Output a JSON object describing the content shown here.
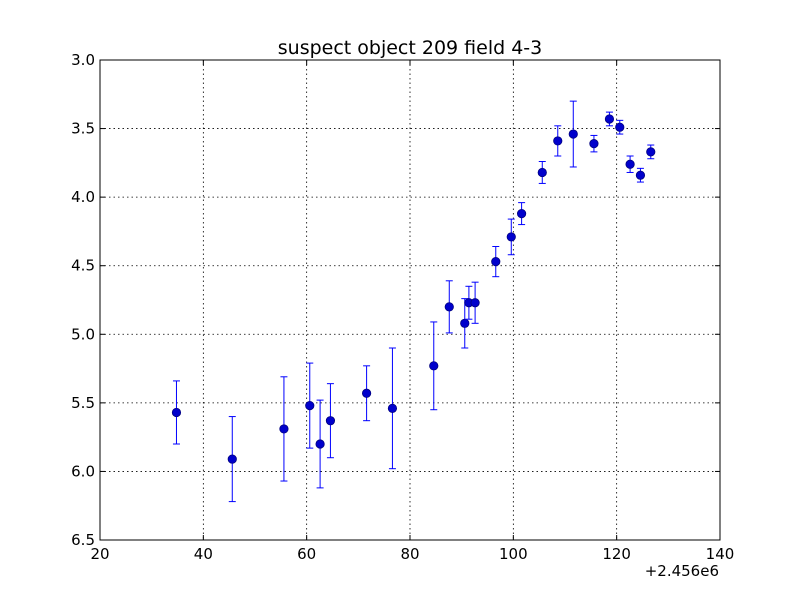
{
  "chart_data": {
    "type": "scatter",
    "title": "suspect object 209 field 4-3",
    "xlabel": "",
    "ylabel": "",
    "x_offset_label": "+2.456e6",
    "xlim": [
      20,
      140
    ],
    "ylim": [
      3.0,
      6.5
    ],
    "y_inverted": true,
    "grid": true,
    "x_ticks": [
      20,
      40,
      60,
      80,
      100,
      120,
      140
    ],
    "x_tick_labels": [
      "20",
      "40",
      "60",
      "80",
      "100",
      "120",
      "140"
    ],
    "y_ticks": [
      3.0,
      3.5,
      4.0,
      4.5,
      5.0,
      5.5,
      6.0,
      6.5
    ],
    "y_tick_labels": [
      "3.0",
      "3.5",
      "4.0",
      "4.5",
      "5.0",
      "5.5",
      "6.0",
      "6.5"
    ],
    "marker_color": "#0000cc",
    "errorbar_color": "#0000ff",
    "points": [
      {
        "x": 34.8,
        "y": 5.57,
        "err": 0.23
      },
      {
        "x": 45.6,
        "y": 5.91,
        "err": 0.31
      },
      {
        "x": 55.6,
        "y": 5.69,
        "err": 0.38
      },
      {
        "x": 60.6,
        "y": 5.52,
        "err": 0.31
      },
      {
        "x": 62.6,
        "y": 5.8,
        "err": 0.32
      },
      {
        "x": 64.6,
        "y": 5.63,
        "err": 0.27
      },
      {
        "x": 71.6,
        "y": 5.43,
        "err": 0.2
      },
      {
        "x": 76.6,
        "y": 5.54,
        "err": 0.44
      },
      {
        "x": 84.6,
        "y": 5.23,
        "err": 0.32
      },
      {
        "x": 87.6,
        "y": 4.8,
        "err": 0.19
      },
      {
        "x": 90.6,
        "y": 4.92,
        "err": 0.18
      },
      {
        "x": 91.4,
        "y": 4.77,
        "err": 0.12
      },
      {
        "x": 92.6,
        "y": 4.77,
        "err": 0.15
      },
      {
        "x": 96.6,
        "y": 4.47,
        "err": 0.11
      },
      {
        "x": 99.6,
        "y": 4.29,
        "err": 0.13
      },
      {
        "x": 101.6,
        "y": 4.12,
        "err": 0.08
      },
      {
        "x": 105.6,
        "y": 3.82,
        "err": 0.08
      },
      {
        "x": 108.6,
        "y": 3.59,
        "err": 0.11
      },
      {
        "x": 111.6,
        "y": 3.54,
        "err": 0.24
      },
      {
        "x": 115.6,
        "y": 3.61,
        "err": 0.06
      },
      {
        "x": 118.6,
        "y": 3.43,
        "err": 0.05
      },
      {
        "x": 120.6,
        "y": 3.49,
        "err": 0.05
      },
      {
        "x": 122.6,
        "y": 3.76,
        "err": 0.06
      },
      {
        "x": 124.6,
        "y": 3.84,
        "err": 0.05
      },
      {
        "x": 126.6,
        "y": 3.67,
        "err": 0.05
      }
    ]
  }
}
